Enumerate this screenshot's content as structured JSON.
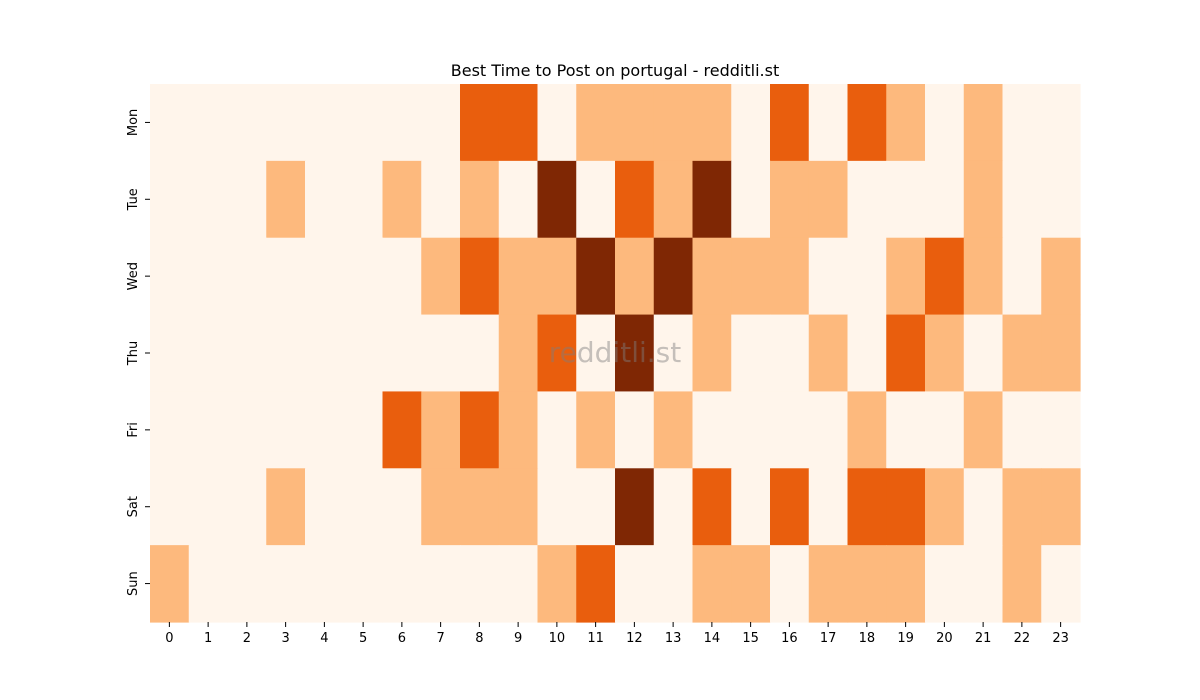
{
  "chart_data": {
    "type": "heatmap",
    "title": "Best Time to Post on portugal - redditli.st",
    "watermark": "redditli.st",
    "xlabel": "",
    "ylabel": "",
    "x_categories": [
      "0",
      "1",
      "2",
      "3",
      "4",
      "5",
      "6",
      "7",
      "8",
      "9",
      "10",
      "11",
      "12",
      "13",
      "14",
      "15",
      "16",
      "17",
      "18",
      "19",
      "20",
      "21",
      "22",
      "23"
    ],
    "y_categories": [
      "Mon",
      "Tue",
      "Wed",
      "Thu",
      "Fri",
      "Sat",
      "Sun"
    ],
    "values": [
      [
        0,
        0,
        0,
        0,
        0,
        0,
        0,
        0,
        2,
        2,
        0,
        1,
        1,
        1,
        1,
        0,
        2,
        0,
        2,
        1,
        0,
        1,
        0,
        0
      ],
      [
        0,
        0,
        0,
        1,
        0,
        0,
        1,
        0,
        1,
        0,
        3,
        0,
        2,
        1,
        3,
        0,
        1,
        1,
        0,
        0,
        0,
        1,
        0,
        0
      ],
      [
        0,
        0,
        0,
        0,
        0,
        0,
        0,
        1,
        2,
        1,
        1,
        3,
        1,
        3,
        1,
        1,
        1,
        0,
        0,
        1,
        2,
        1,
        0,
        1
      ],
      [
        0,
        0,
        0,
        0,
        0,
        0,
        0,
        0,
        0,
        1,
        2,
        0,
        3,
        0,
        1,
        0,
        0,
        1,
        0,
        2,
        1,
        0,
        1,
        1
      ],
      [
        0,
        0,
        0,
        0,
        0,
        0,
        2,
        1,
        2,
        1,
        0,
        1,
        0,
        1,
        0,
        0,
        0,
        0,
        1,
        0,
        0,
        1,
        0,
        0
      ],
      [
        0,
        0,
        0,
        1,
        0,
        0,
        0,
        1,
        1,
        1,
        0,
        0,
        3,
        0,
        2,
        0,
        2,
        0,
        2,
        2,
        1,
        0,
        1,
        1
      ],
      [
        1,
        0,
        0,
        0,
        0,
        0,
        0,
        0,
        0,
        0,
        1,
        2,
        0,
        0,
        1,
        1,
        0,
        1,
        1,
        1,
        0,
        0,
        1,
        0
      ]
    ],
    "color_scale": [
      "#fff5eb",
      "#fdb97d",
      "#e95e0d",
      "#7f2704"
    ],
    "grid": false,
    "legend": "none"
  }
}
